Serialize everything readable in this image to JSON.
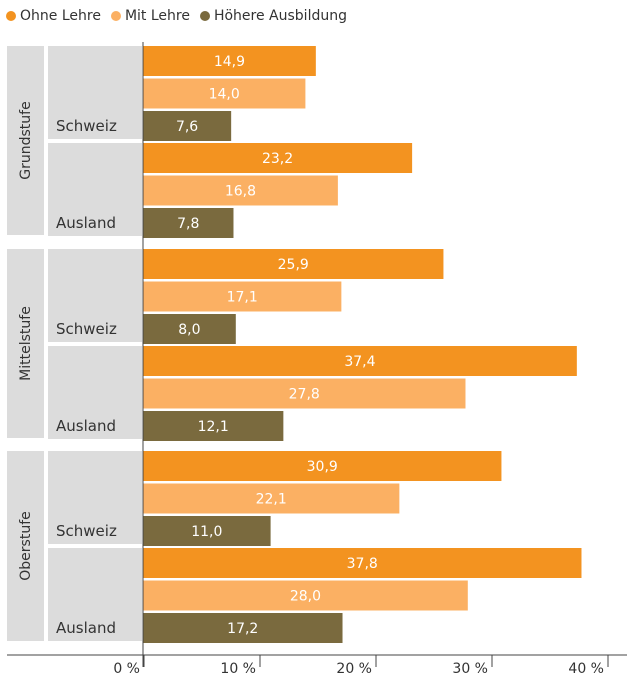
{
  "chart_data": {
    "type": "bar",
    "orientation": "horizontal",
    "xlim": [
      0,
      40
    ],
    "x_ticks": [
      "0 %",
      "10 %",
      "20 %",
      "30 %",
      "40 %"
    ],
    "legend_position": "top-left",
    "series": [
      {
        "name": "Ohne Lehre",
        "color": "#F39320"
      },
      {
        "name": "Mit Lehre",
        "color": "#FBB063"
      },
      {
        "name": "Höhere Ausbildung",
        "color": "#7A6A3E"
      }
    ],
    "groups": [
      {
        "label": "Grundstufe",
        "subgroups": [
          {
            "label": "Schweiz",
            "values": [
              14.9,
              14.0,
              7.6
            ],
            "value_labels": [
              "14,9",
              "14,0",
              "7,6"
            ]
          },
          {
            "label": "Ausland",
            "values": [
              23.2,
              16.8,
              7.8
            ],
            "value_labels": [
              "23,2",
              "16,8",
              "7,8"
            ]
          }
        ]
      },
      {
        "label": "Mittelstufe",
        "subgroups": [
          {
            "label": "Schweiz",
            "values": [
              25.9,
              17.1,
              8.0
            ],
            "value_labels": [
              "25,9",
              "17,1",
              "8,0"
            ]
          },
          {
            "label": "Ausland",
            "values": [
              37.4,
              27.8,
              12.1
            ],
            "value_labels": [
              "37,4",
              "27,8",
              "12,1"
            ]
          }
        ]
      },
      {
        "label": "Oberstufe",
        "subgroups": [
          {
            "label": "Schweiz",
            "values": [
              30.9,
              22.1,
              11.0
            ],
            "value_labels": [
              "30,9",
              "22,1",
              "11,0"
            ]
          },
          {
            "label": "Ausland",
            "values": [
              37.8,
              28.0,
              17.2
            ],
            "value_labels": [
              "37,8",
              "28,0",
              "17,2"
            ]
          }
        ]
      }
    ]
  }
}
